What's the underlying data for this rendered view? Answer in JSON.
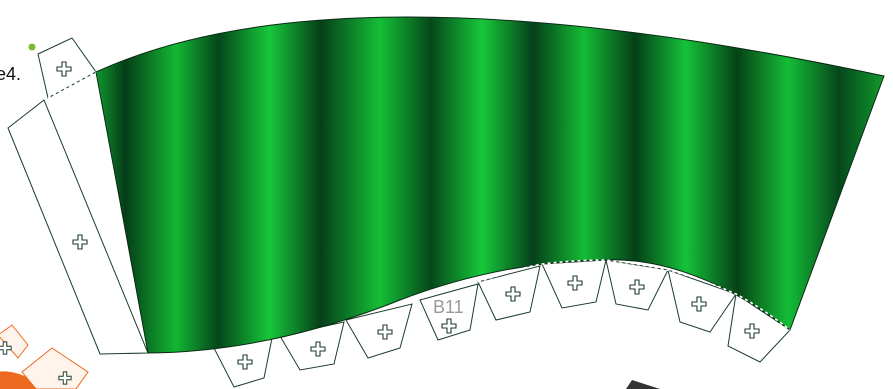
{
  "partial_label": "e4.",
  "piece_label": "B11",
  "colors": {
    "green_light": "#16c83a",
    "green_mid": "#0a9a28",
    "green_dark": "#04401a",
    "outline": "#1a3d2a",
    "orange": "#ec6a1f",
    "dot": "#7dbb2a",
    "label_gray": "#9a9a9a"
  },
  "icons": {
    "tab_mark": "cross-icon"
  }
}
